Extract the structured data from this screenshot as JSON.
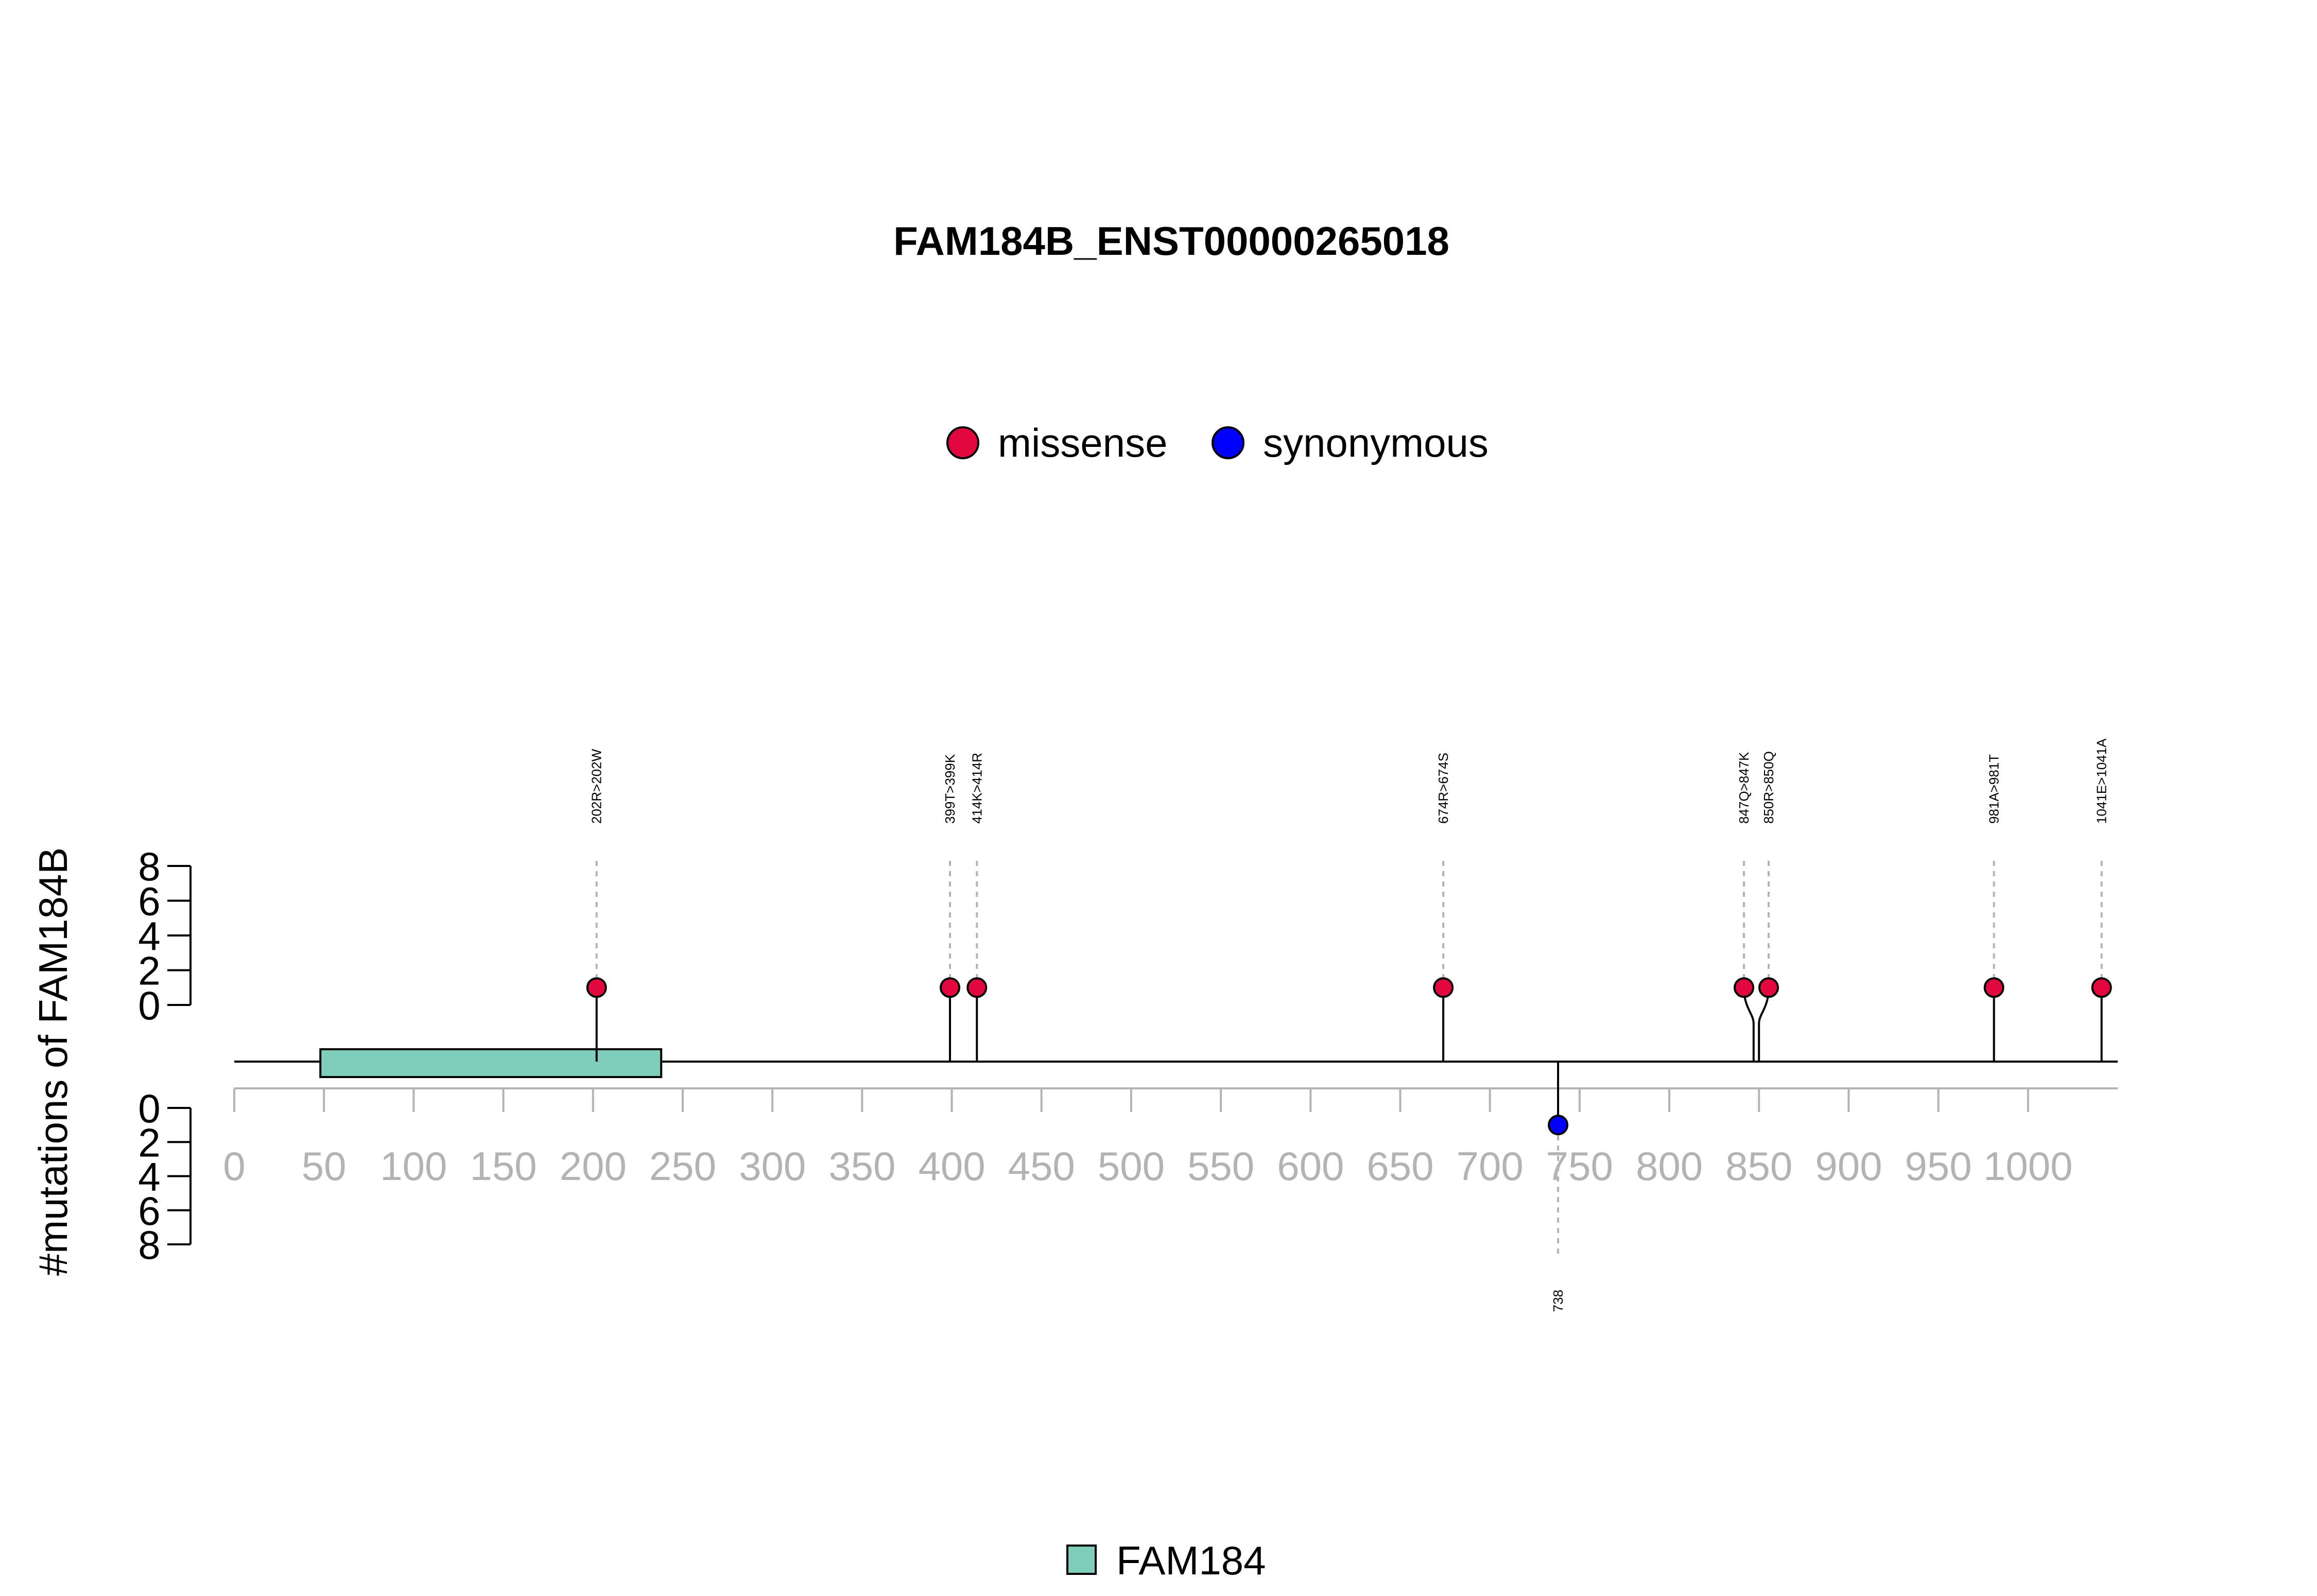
{
  "chart_data": {
    "type": "lollipop",
    "title": "FAM184B_ENST00000265018",
    "ylabel": "#mutations of FAM184B",
    "xlim": [
      0,
      1050
    ],
    "x_ticks": [
      0,
      50,
      100,
      150,
      200,
      250,
      300,
      350,
      400,
      450,
      500,
      550,
      600,
      650,
      700,
      750,
      800,
      850,
      900,
      950,
      1000
    ],
    "x_tick_labels": [
      "0",
      "50",
      "100",
      "150",
      "200",
      "250",
      "300",
      "350",
      "400",
      "450",
      "500",
      "550",
      "600",
      "650",
      "700",
      "750",
      "800",
      "850",
      "900",
      "950",
      "1000"
    ],
    "y_ticks_top": [
      "0",
      "2",
      "4",
      "6",
      "8"
    ],
    "y_ticks_bottom": [
      "0",
      "2",
      "4",
      "6",
      "8"
    ],
    "ylim": [
      0,
      8
    ],
    "legend_mutations": [
      {
        "name": "missense",
        "color": "#e3073f"
      },
      {
        "name": "synonymous",
        "color": "#0000ff"
      }
    ],
    "domains": [
      {
        "name": "FAM184",
        "start": 48,
        "end": 238,
        "color": "#7fcdbb"
      }
    ],
    "mutations_top": [
      {
        "position": 202,
        "label": "202R>202W",
        "count": 1,
        "type": "missense"
      },
      {
        "position": 399,
        "label": "399T>399K",
        "count": 1,
        "type": "missense"
      },
      {
        "position": 414,
        "label": "414K>414R",
        "count": 1,
        "type": "missense"
      },
      {
        "position": 674,
        "label": "674R>674S",
        "count": 1,
        "type": "missense"
      },
      {
        "position": 847,
        "label": "847Q>847K",
        "count": 1,
        "type": "missense"
      },
      {
        "position": 850,
        "label": "850R>850Q",
        "count": 1,
        "type": "missense"
      },
      {
        "position": 981,
        "label": "981A>981T",
        "count": 1,
        "type": "missense"
      },
      {
        "position": 1041,
        "label": "1041E>1041A",
        "count": 1,
        "type": "missense"
      }
    ],
    "mutations_bottom": [
      {
        "position": 738,
        "label": "738",
        "count": 1,
        "type": "synonymous"
      }
    ],
    "legend_domains": [
      {
        "name": "FAM184",
        "color": "#7fcdbb"
      }
    ]
  }
}
